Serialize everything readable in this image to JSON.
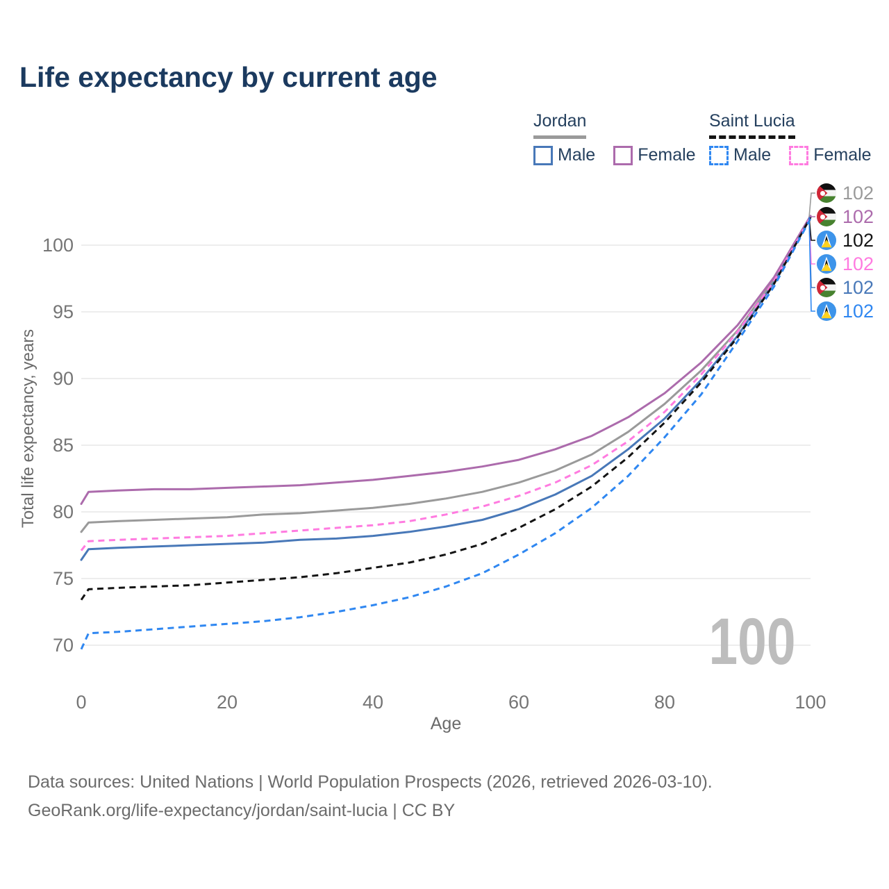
{
  "page": {
    "title": "Life expectancy by current age"
  },
  "legend": {
    "groups": [
      {
        "name": "Jordan",
        "line_style": "solid",
        "underline_color": "#9a9a9a",
        "items": [
          {
            "label": "Male",
            "color": "#4878b8",
            "dashed": false
          },
          {
            "label": "Female",
            "color": "#ac6bac",
            "dashed": false
          }
        ]
      },
      {
        "name": "Saint Lucia",
        "line_style": "dashed",
        "underline_color": "#141414",
        "items": [
          {
            "label": "Male",
            "color": "#2f87f1",
            "dashed": true
          },
          {
            "label": "Female",
            "color": "#ff7be0",
            "dashed": true
          }
        ]
      }
    ]
  },
  "chart_data": {
    "type": "line",
    "title": "Life expectancy by current age",
    "xlabel": "Age",
    "ylabel": "Total life expectancy, years",
    "xlim": [
      0,
      100
    ],
    "ylim": [
      70,
      103
    ],
    "x_ticks": [
      0,
      20,
      40,
      60,
      80,
      100
    ],
    "y_ticks": [
      70,
      75,
      80,
      85,
      90,
      95,
      100
    ],
    "grid": "horizontal-only",
    "age_indicator": "100",
    "x": [
      0,
      1,
      5,
      10,
      15,
      20,
      25,
      30,
      35,
      40,
      45,
      50,
      55,
      60,
      65,
      70,
      75,
      80,
      85,
      90,
      95,
      100
    ],
    "series": [
      {
        "name": "Jordan",
        "sex": "both",
        "flag": "jordan",
        "color": "#9a9a9a",
        "dashed": false,
        "end_label": "102",
        "label_row": 0,
        "values": [
          78.5,
          79.2,
          79.3,
          79.4,
          79.5,
          79.6,
          79.8,
          79.9,
          80.1,
          80.3,
          80.6,
          81.0,
          81.5,
          82.2,
          83.1,
          84.3,
          86.0,
          88.1,
          90.6,
          93.6,
          97.4,
          102.1
        ]
      },
      {
        "name": "Jordan Female",
        "sex": "female",
        "flag": "jordan",
        "color": "#ac6bac",
        "dashed": false,
        "end_label": "102",
        "label_row": 1,
        "values": [
          80.6,
          81.5,
          81.6,
          81.7,
          81.7,
          81.8,
          81.9,
          82.0,
          82.2,
          82.4,
          82.7,
          83.0,
          83.4,
          83.9,
          84.7,
          85.7,
          87.1,
          88.9,
          91.2,
          94.0,
          97.6,
          102.2
        ]
      },
      {
        "name": "Jordan Male",
        "sex": "male",
        "flag": "jordan",
        "color": "#4878b8",
        "dashed": false,
        "end_label": "102",
        "label_row": 4,
        "values": [
          76.4,
          77.2,
          77.3,
          77.4,
          77.5,
          77.6,
          77.7,
          77.9,
          78.0,
          78.2,
          78.5,
          78.9,
          79.4,
          80.2,
          81.3,
          82.7,
          84.7,
          87.0,
          89.9,
          93.2,
          97.2,
          102.1
        ]
      },
      {
        "name": "Saint Lucia Female",
        "sex": "female",
        "flag": "saint-lucia",
        "color": "#ff7be0",
        "dashed": true,
        "end_label": "102",
        "label_row": 3,
        "values": [
          77.1,
          77.8,
          77.9,
          78.0,
          78.1,
          78.2,
          78.4,
          78.6,
          78.8,
          79.0,
          79.3,
          79.8,
          80.4,
          81.2,
          82.2,
          83.5,
          85.3,
          87.5,
          90.3,
          93.5,
          97.3,
          102.1
        ]
      },
      {
        "name": "Saint Lucia",
        "sex": "both",
        "flag": "saint-lucia",
        "color": "#141414",
        "dashed": true,
        "end_label": "102",
        "label_row": 2,
        "values": [
          73.4,
          74.2,
          74.3,
          74.4,
          74.5,
          74.7,
          74.9,
          75.1,
          75.4,
          75.8,
          76.2,
          76.8,
          77.6,
          78.8,
          80.2,
          81.9,
          84.1,
          86.7,
          89.7,
          93.1,
          97.1,
          102.1
        ]
      },
      {
        "name": "Saint Lucia Male",
        "sex": "male",
        "flag": "saint-lucia",
        "color": "#2f87f1",
        "dashed": true,
        "end_label": "102",
        "label_row": 5,
        "values": [
          69.7,
          70.9,
          71.0,
          71.2,
          71.4,
          71.6,
          71.8,
          72.1,
          72.5,
          73.0,
          73.6,
          74.4,
          75.4,
          76.8,
          78.4,
          80.3,
          82.7,
          85.6,
          88.8,
          92.8,
          96.9,
          102.0
        ]
      }
    ]
  },
  "footer": {
    "line1": "Data sources: United Nations | World Population Prospects (2026, retrieved 2026-03-10).",
    "line2": "GeoRank.org/life-expectancy/jordan/saint-lucia | CC BY"
  }
}
